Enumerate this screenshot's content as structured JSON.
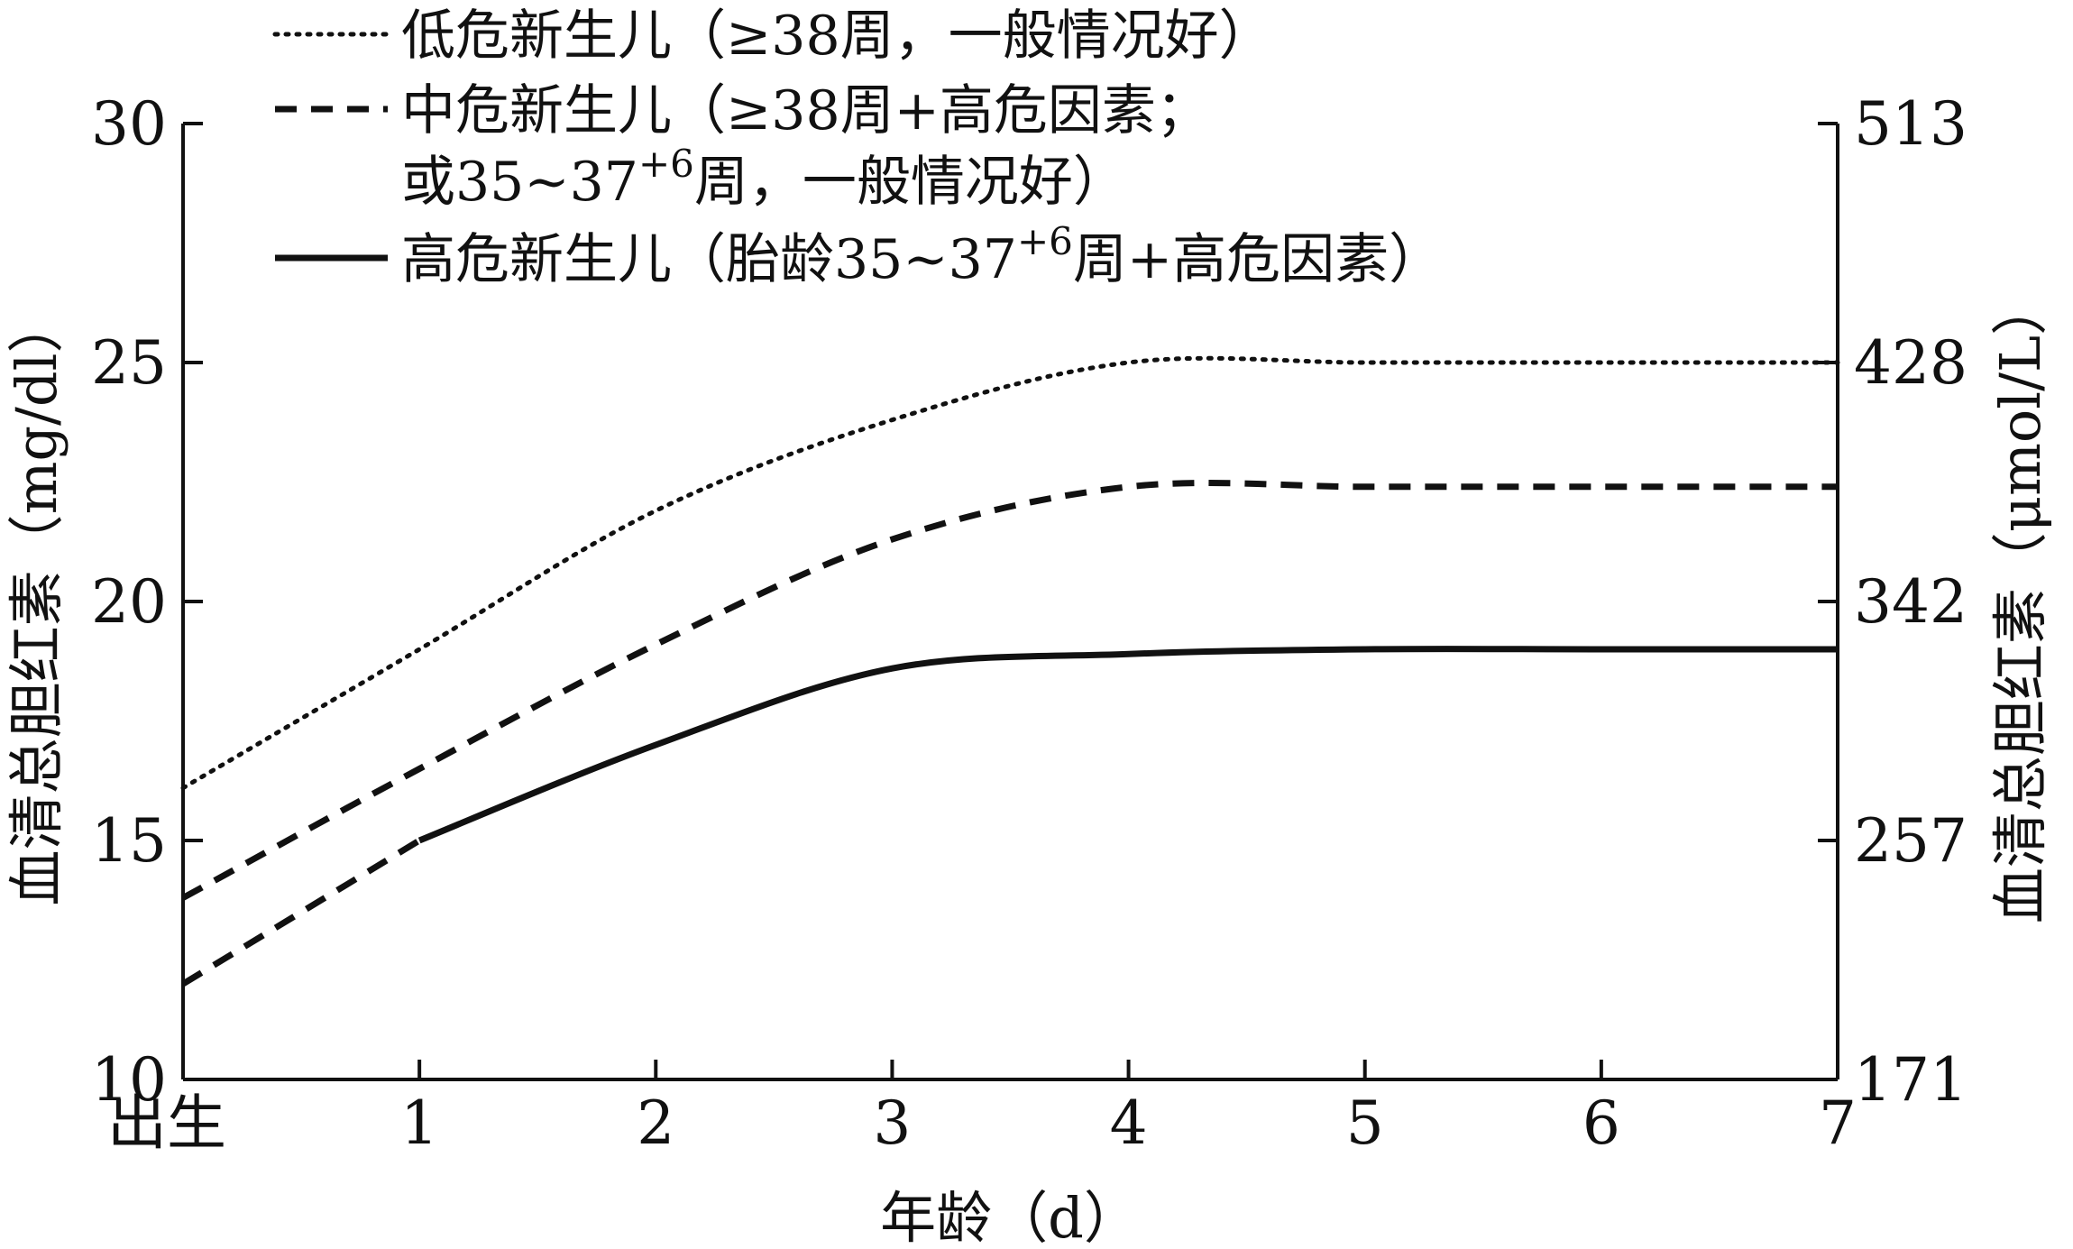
{
  "chart_data": {
    "type": "line",
    "xlabel": "年龄（d）",
    "ylabel_left": "血清总胆红素（mg/dl）",
    "ylabel_right": "血清总胆红素（μmol/L）",
    "x_ticks": [
      "出生",
      "1",
      "2",
      "3",
      "4",
      "5",
      "6",
      "7"
    ],
    "y_ticks_left": [
      "10",
      "15",
      "20",
      "25",
      "30"
    ],
    "y_ticks_right": [
      "171",
      "257",
      "342",
      "428",
      "513"
    ],
    "xlim": [
      0,
      7
    ],
    "ylim": [
      10,
      30
    ],
    "grid": false,
    "legend_position": "top",
    "series": [
      {
        "name_lines": [
          "低危新生儿（≥38周，一般情况好）"
        ],
        "style": "dotted",
        "x": [
          0,
          1,
          2,
          3,
          4,
          5,
          6,
          7
        ],
        "values": [
          16.1,
          19.0,
          21.9,
          23.8,
          25.0,
          25.0,
          25.0,
          25.0
        ]
      },
      {
        "name_lines": [
          "中危新生儿（≥38周+高危因素；",
          "或35~37",
          "周，一般情况好）"
        ],
        "style": "dashed",
        "x": [
          0,
          1,
          2,
          3,
          4,
          5,
          6,
          7
        ],
        "values": [
          13.8,
          16.5,
          19.1,
          21.3,
          22.4,
          22.4,
          22.4,
          22.4
        ]
      },
      {
        "name_lines": [
          "高危新生儿（胎龄35~37",
          "周+高危因素）"
        ],
        "style": "solid",
        "x": [
          0,
          1,
          2,
          3,
          4,
          5,
          6,
          7
        ],
        "values": [
          12.0,
          15.0,
          17.0,
          18.6,
          18.9,
          19.0,
          19.0,
          19.0
        ]
      }
    ],
    "early_segment": {
      "x": [
        0,
        1
      ],
      "values": [
        12.0,
        15.0
      ],
      "style": "dashed"
    },
    "superscript": "+6"
  },
  "colors": {
    "line": "#111111",
    "background": "#ffffff"
  }
}
